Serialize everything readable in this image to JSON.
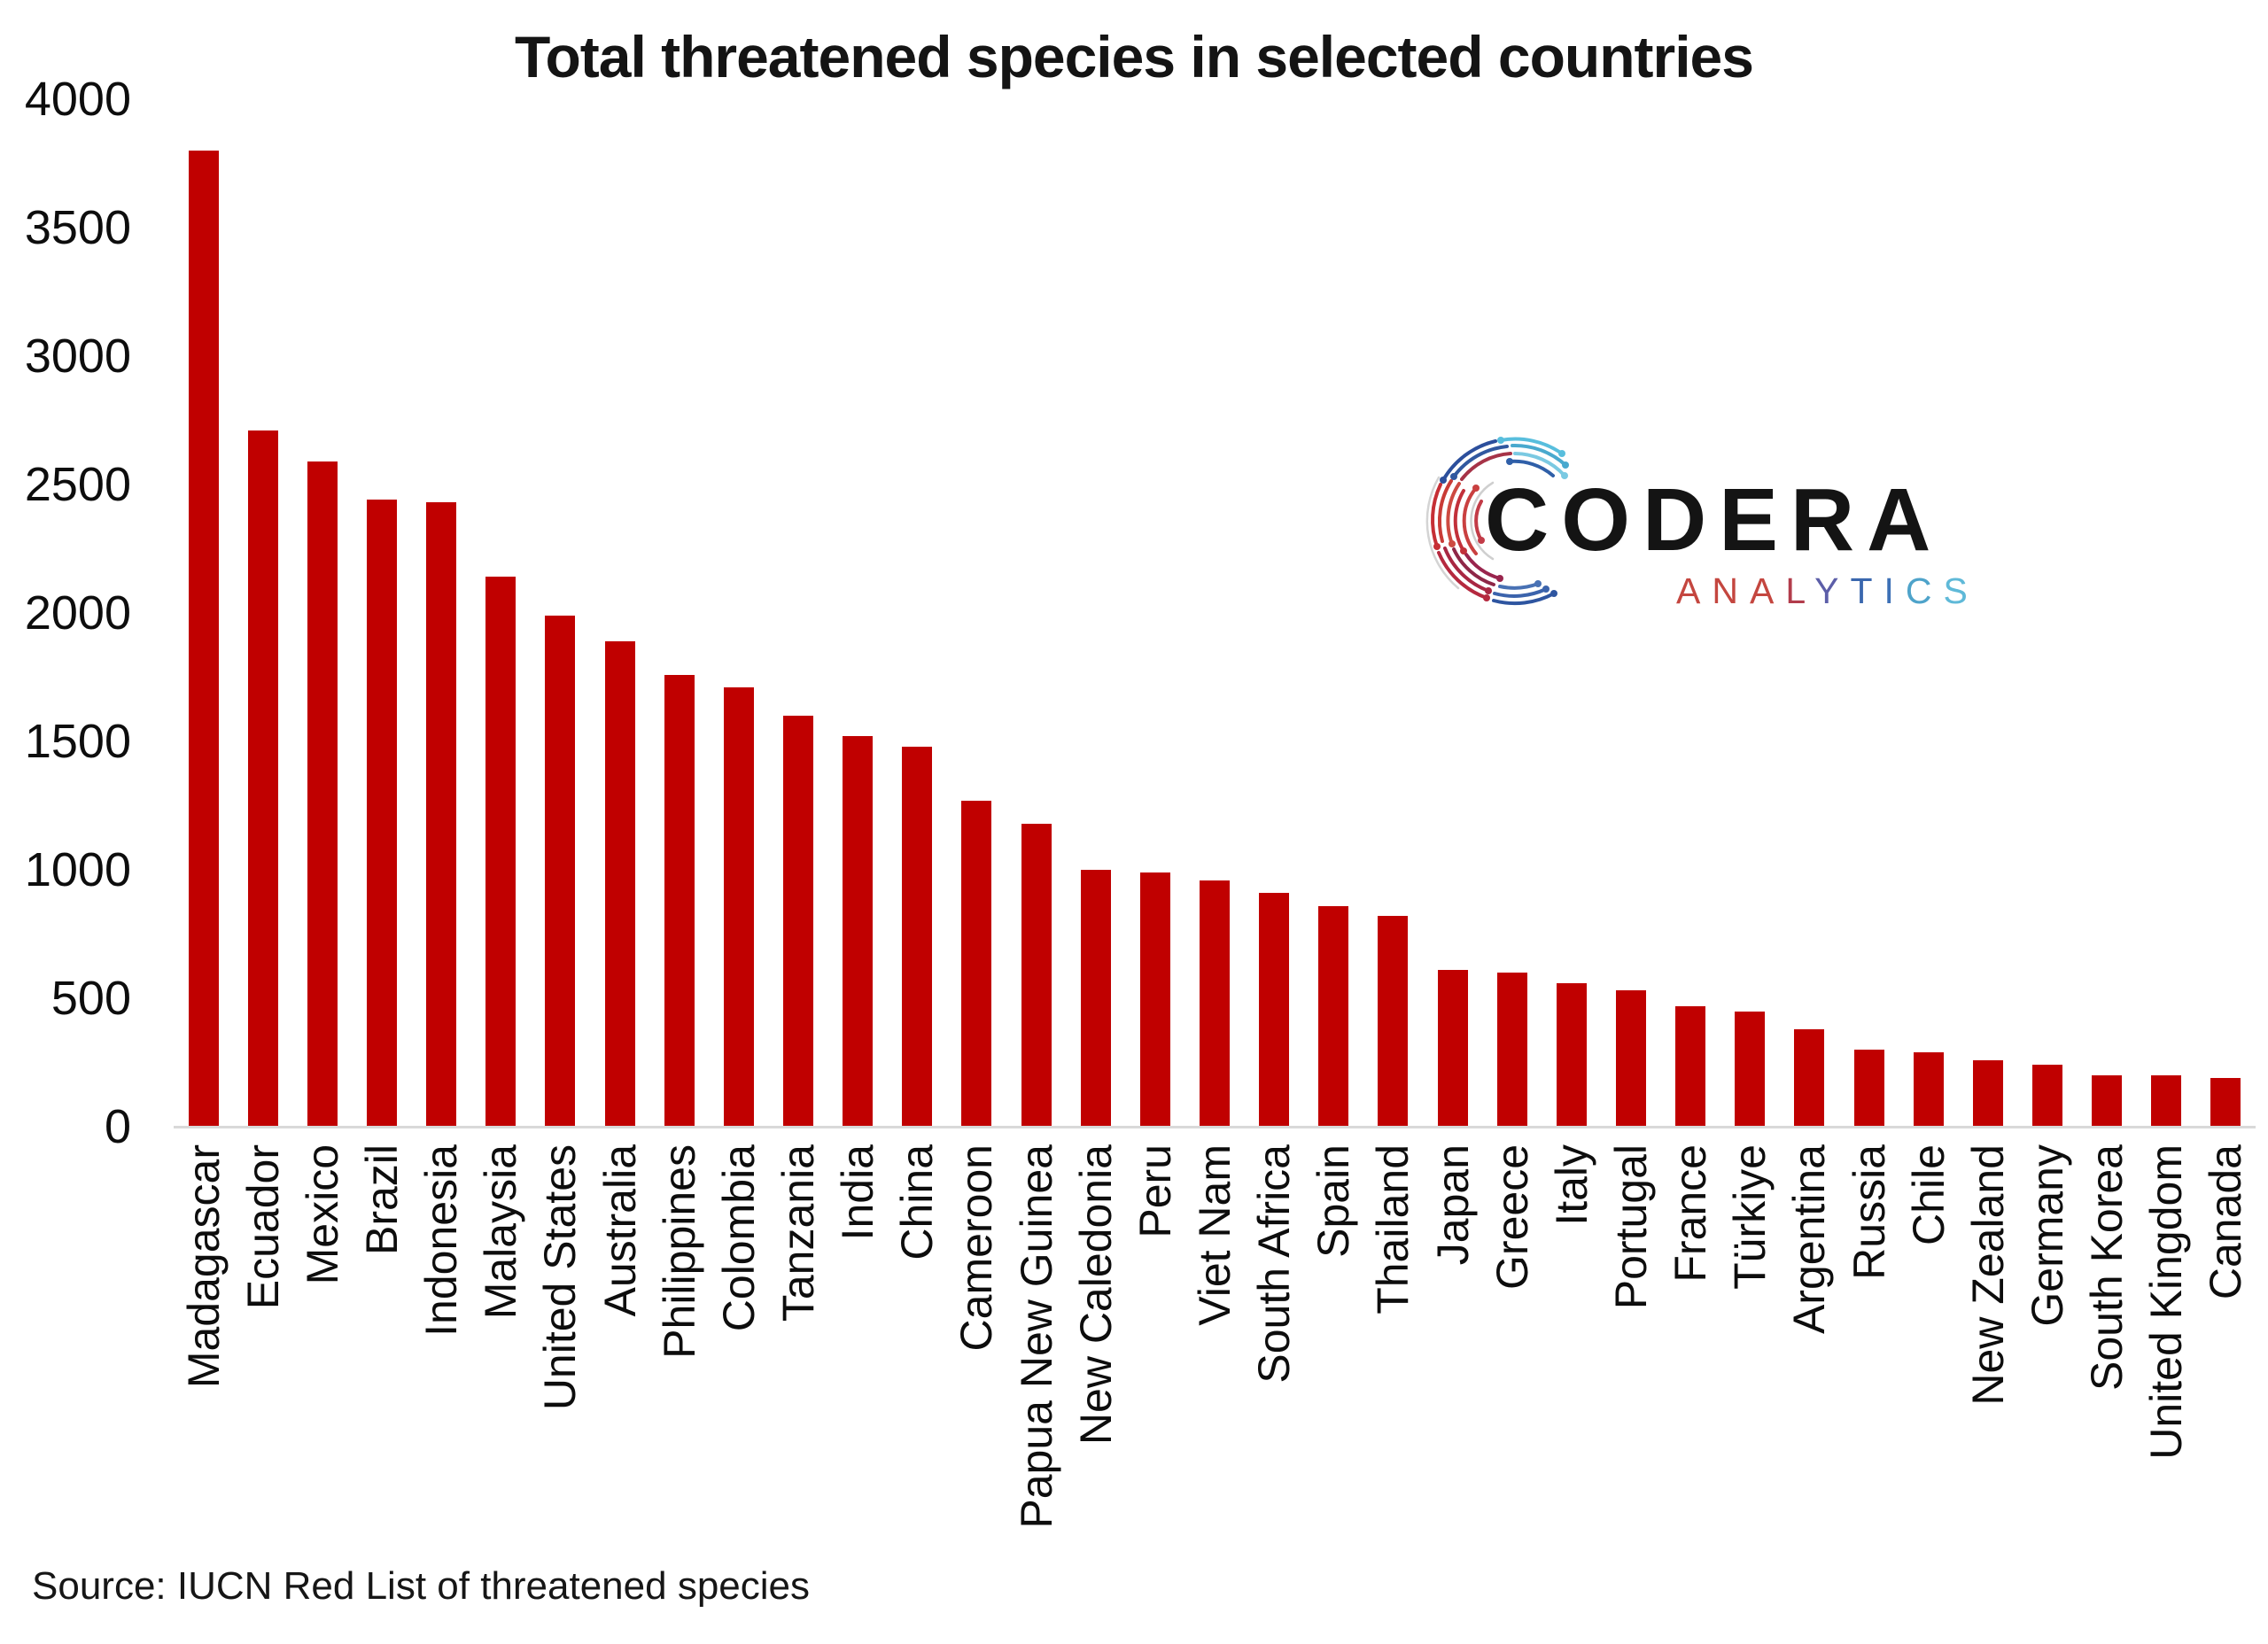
{
  "title": "Total threatened species in selected countries",
  "source_note": "Source: IUCN Red List of threatened species",
  "logo": {
    "wordmark": "CODERA",
    "subtitle": "ANALYTICS",
    "subtitle_letters": [
      {
        "char": "A",
        "color": "#c4463f"
      },
      {
        "char": "N",
        "color": "#c4463f"
      },
      {
        "char": "A",
        "color": "#c4463f"
      },
      {
        "char": "L",
        "color": "#b23c4b"
      },
      {
        "char": "Y",
        "color": "#5c5ea8"
      },
      {
        "char": "T",
        "color": "#3a67ae"
      },
      {
        "char": "I",
        "color": "#3d70b6"
      },
      {
        "char": "C",
        "color": "#4ea3ca"
      },
      {
        "char": "S",
        "color": "#5fb9d8"
      }
    ]
  },
  "colors": {
    "bar": "#C00000",
    "baseline": "#D9D9D9",
    "text": "#0d0d0d"
  },
  "chart_data": {
    "type": "bar",
    "title": "Total threatened species in selected countries",
    "categories": [
      "Madagascar",
      "Ecuador",
      "Mexico",
      "Brazil",
      "Indonesia",
      "Malaysia",
      "United States",
      "Australia",
      "Philippines",
      "Colombia",
      "Tanzania",
      "India",
      "China",
      "Cameroon",
      "Papua New Guinea",
      "New Caledonia",
      "Peru",
      "Viet Nam",
      "South Africa",
      "Spain",
      "Thailand",
      "Japan",
      "Greece",
      "Italy",
      "Portugal",
      "France",
      "Türkiye",
      "Argentina",
      "Russia",
      "Chile",
      "New Zealand",
      "Germany",
      "South Korea",
      "United Kingdom",
      "Canada"
    ],
    "values": [
      3800,
      2710,
      2590,
      2440,
      2430,
      2140,
      1990,
      1890,
      1760,
      1710,
      1600,
      1520,
      1480,
      1270,
      1180,
      1000,
      990,
      960,
      910,
      860,
      820,
      610,
      600,
      560,
      530,
      470,
      450,
      380,
      300,
      290,
      260,
      240,
      200,
      200,
      190
    ],
    "xlabel": "",
    "ylabel": "",
    "ylim": [
      0,
      4000
    ],
    "yticks": [
      4000,
      3500,
      3000,
      2500,
      2000,
      1500,
      1000,
      500,
      0
    ],
    "bar_color": "#C00000",
    "grid": false,
    "legend": false,
    "x_tick_rotation": -90,
    "source": "Source: IUCN Red List of threatened species"
  }
}
